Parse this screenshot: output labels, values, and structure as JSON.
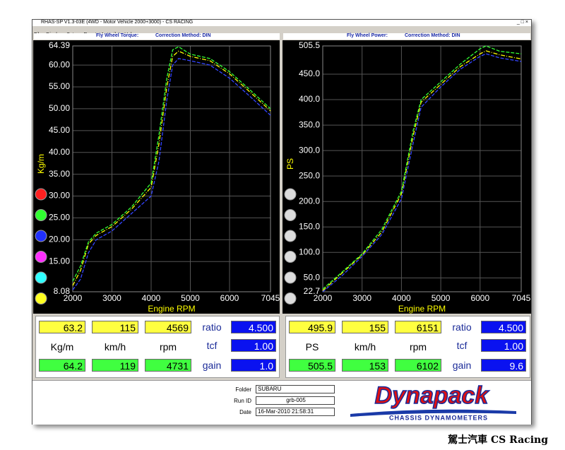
{
  "window": {
    "title": "RHAS-SP V1.3-03E  (4WD - Motor Vehicle 2000+3000) - CS RACING",
    "menu": [
      "File",
      "Display",
      "Setup",
      "Reset",
      "Autopilot",
      "Help"
    ]
  },
  "chart_data": [
    {
      "type": "line",
      "title": "Fly Wheel Torque:",
      "subtitle": "Correction Method: DIN",
      "x_label": "Engine RPM",
      "y_label": "Kg/m",
      "x": [
        2000,
        2200,
        2400,
        2600,
        3000,
        3500,
        4000,
        4200,
        4400,
        4550,
        4700,
        5000,
        5500,
        6000,
        6500,
        7045
      ],
      "series": [
        {
          "color": "#ffff00",
          "values": [
            9.5,
            13,
            19,
            21,
            23,
            27,
            32,
            42,
            55,
            62,
            63.2,
            62,
            61,
            58,
            54,
            49.5
          ]
        },
        {
          "color": "#33ff33",
          "values": [
            10.5,
            14,
            19.5,
            21.5,
            23.5,
            27.5,
            33,
            44,
            57,
            63.5,
            64.2,
            62.5,
            61.5,
            58.5,
            54.5,
            50
          ]
        },
        {
          "color": "#3344ff",
          "values": [
            8.5,
            11,
            17,
            20,
            22,
            26,
            30,
            38,
            52,
            60,
            61.5,
            61,
            60,
            57,
            53,
            48.5
          ]
        }
      ],
      "xlim": [
        2000,
        7045
      ],
      "xticks": [
        2000,
        3000,
        4000,
        5000,
        6000,
        7045
      ],
      "ylim": [
        8.08,
        64.39
      ],
      "yticks": [
        8.08,
        {
          "value": 15,
          "label": "15.00"
        },
        {
          "value": 20,
          "label": "20.00"
        },
        {
          "value": 25,
          "label": "25.00"
        },
        {
          "value": 30,
          "label": "30.00"
        },
        {
          "value": 35,
          "label": "35.00"
        },
        {
          "value": 40,
          "label": "40.00"
        },
        {
          "value": 45,
          "label": "45.00"
        },
        {
          "value": 50,
          "label": "50.00"
        },
        {
          "value": 55,
          "label": "55.00"
        },
        {
          "value": 60,
          "label": "60.00"
        },
        64.39
      ],
      "grid": true
    },
    {
      "type": "line",
      "title": "Fly Wheel Power:",
      "subtitle": "Correction Method: DIN",
      "x_label": "Engine RPM",
      "y_label": "PS",
      "x": [
        2000,
        2500,
        3000,
        3500,
        4000,
        4300,
        4500,
        5000,
        5500,
        6000,
        6150,
        6500,
        7045
      ],
      "series": [
        {
          "color": "#ffff00",
          "values": [
            25,
            60,
            95,
            140,
            215,
            330,
            395,
            430,
            465,
            490,
            495.9,
            488,
            480
          ]
        },
        {
          "color": "#33ff33",
          "values": [
            28,
            62,
            97,
            145,
            220,
            340,
            400,
            435,
            470,
            500,
            505.5,
            495,
            490
          ]
        },
        {
          "color": "#3344ff",
          "values": [
            22.7,
            55,
            92,
            135,
            205,
            315,
            385,
            425,
            460,
            485,
            490,
            482,
            475
          ]
        }
      ],
      "xlim": [
        2000,
        7045
      ],
      "xticks": [
        2000,
        3000,
        4000,
        5000,
        6000,
        7045
      ],
      "ylim": [
        22.7,
        505.5
      ],
      "yticks": [
        22.7,
        {
          "value": 50,
          "label": "50.0"
        },
        {
          "value": 100,
          "label": "100.0"
        },
        {
          "value": 150,
          "label": "150.0"
        },
        {
          "value": 200,
          "label": "200.0"
        },
        {
          "value": 250,
          "label": "250.0"
        },
        {
          "value": 300,
          "label": "300.0"
        },
        {
          "value": 350,
          "label": "350.0"
        },
        {
          "value": 400,
          "label": "400.0"
        },
        {
          "value": 450,
          "label": "450.0"
        },
        505.5
      ],
      "grid": true
    }
  ],
  "panels": [
    {
      "top": [
        "63.2",
        "115",
        "4569"
      ],
      "units": [
        "Kg/m",
        "km/h",
        "rpm"
      ],
      "bottom": [
        "64.2",
        "119",
        "4731"
      ],
      "side_labels": [
        "ratio",
        "tcf",
        "gain"
      ],
      "side_values": [
        "4.500",
        "1.00",
        "1.0"
      ]
    },
    {
      "top": [
        "495.9",
        "155",
        "6151"
      ],
      "units": [
        "PS",
        "km/h",
        "rpm"
      ],
      "bottom": [
        "505.5",
        "153",
        "6102"
      ],
      "side_labels": [
        "ratio",
        "tcf",
        "gain"
      ],
      "side_values": [
        "4.500",
        "1.00",
        "9.6"
      ]
    }
  ],
  "footer": {
    "folder_label": "Folder",
    "folder": "SUBARU",
    "run_label": "Run ID",
    "run": "grb-005",
    "date_label": "Date",
    "date": "16-Mar-2010  21:58:31",
    "logo": "Dynapack",
    "logo_sub": "CHASSIS  DYNAMOMETERS"
  },
  "caption": "駕士汽車 CS Racing"
}
